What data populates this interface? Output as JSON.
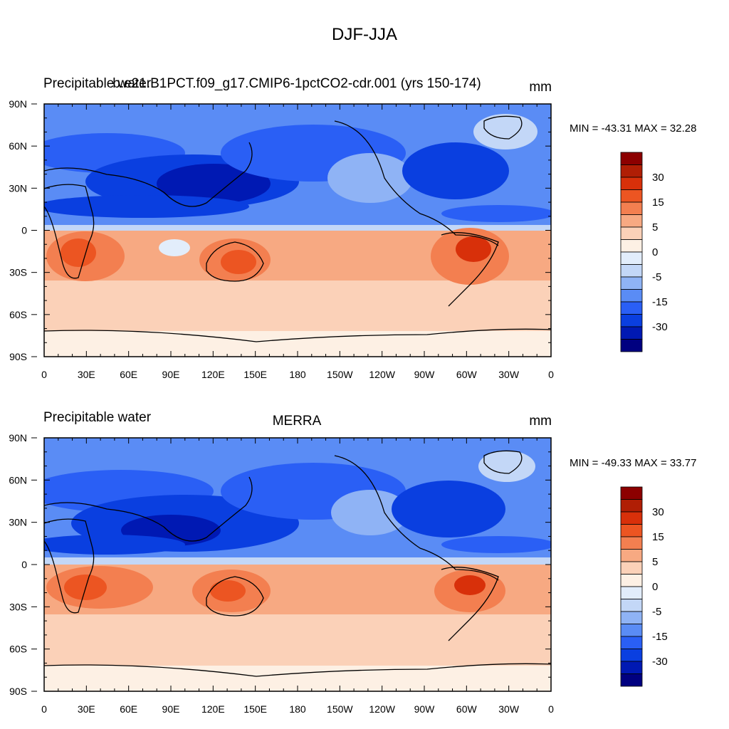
{
  "title": "DJF-JJA",
  "colors": {
    "palette": [
      "#000080",
      "#0019b3",
      "#0a3fe0",
      "#2a5ff5",
      "#5a8cf5",
      "#8fb3f5",
      "#c3d7f7",
      "#e2edfb",
      "#fdf0e4",
      "#fbd1b8",
      "#f7a982",
      "#f37f50",
      "#ec5522",
      "#d8300a",
      "#b01e05",
      "#8c0000"
    ],
    "coast": "#000000"
  },
  "colorbar": {
    "labels": [
      "30",
      "15",
      "5",
      "0",
      "-5",
      "-15",
      "-30"
    ]
  },
  "axes": {
    "lon_labels": [
      "0",
      "30E",
      "60E",
      "90E",
      "120E",
      "150E",
      "180",
      "150W",
      "120W",
      "90W",
      "60W",
      "30W",
      "0"
    ],
    "lat_labels": [
      "90N",
      "60N",
      "30N",
      "0",
      "30S",
      "60S",
      "90S"
    ]
  },
  "chart_data": [
    {
      "type": "heatmap",
      "left_title": "Precipitable water",
      "center_title": "b.e21.B1PCT.f09_g17.CMIP6-1pctCO2-cdr.001 (yrs 150-174)",
      "units": "mm",
      "stats": "MIN = -43.31 MAX =  32.28",
      "min": -43.31,
      "max": 32.28,
      "variable": "Precipitable water",
      "season_diff": "DJF-JJA",
      "xlim": [
        0,
        360
      ],
      "ylim": [
        -90,
        90
      ],
      "contour_levels": [
        -30,
        -15,
        -5,
        0,
        5,
        15,
        30
      ]
    },
    {
      "type": "heatmap",
      "left_title": "Precipitable water",
      "center_title": "MERRA",
      "units": "mm",
      "stats": "MIN = -49.33 MAX =  33.77",
      "min": -49.33,
      "max": 33.77,
      "variable": "Precipitable water",
      "season_diff": "DJF-JJA",
      "xlim": [
        0,
        360
      ],
      "ylim": [
        -90,
        90
      ],
      "contour_levels": [
        -30,
        -15,
        -5,
        0,
        5,
        15,
        30
      ]
    }
  ]
}
